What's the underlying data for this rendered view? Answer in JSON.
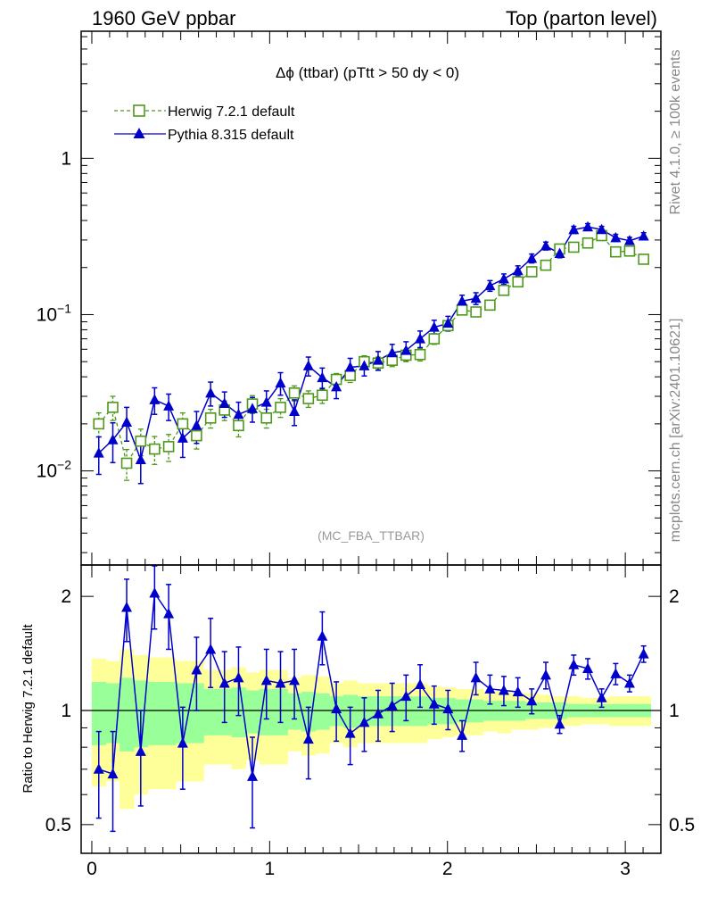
{
  "header": {
    "left": "1960 GeV ppbar",
    "right": "Top (parton level)"
  },
  "side": {
    "rivet": "Rivet 4.1.0, ≥ 100k events",
    "mcplots": "mcplots.cern.ch [arXiv:2401.10621]"
  },
  "colors": {
    "herwig": "#4d9a1a",
    "pythia": "#0000cc",
    "band_inner": "#99ff99",
    "band_outer": "#ffff99"
  },
  "chart_data": [
    {
      "type": "line",
      "panel": "main",
      "title": "Δϕ (ttbar) (pTtt > 50 dy < 0)",
      "watermark": "(MC_FBA_TTBAR)",
      "xlabel": "",
      "ylabel": "",
      "yscale": "log",
      "xlim": [
        -0.06,
        3.2
      ],
      "ylim": [
        0.0025,
        6.5
      ],
      "y_ticks": [
        {
          "value": 0.01,
          "base": "10",
          "exp": "−2"
        },
        {
          "value": 0.1,
          "base": "10",
          "exp": "−1"
        },
        {
          "value": 1,
          "base": "1",
          "exp": ""
        }
      ],
      "legend_position": "top-left",
      "x": [
        0.039,
        0.118,
        0.196,
        0.275,
        0.353,
        0.432,
        0.511,
        0.589,
        0.668,
        0.746,
        0.825,
        0.903,
        0.982,
        1.061,
        1.139,
        1.218,
        1.296,
        1.375,
        1.453,
        1.532,
        1.61,
        1.689,
        1.767,
        1.846,
        1.925,
        2.003,
        2.082,
        2.16,
        2.239,
        2.317,
        2.396,
        2.474,
        2.553,
        2.631,
        2.71,
        2.789,
        2.867,
        2.946,
        3.024,
        3.103
      ],
      "series": [
        {
          "name": "Herwig 7.2.1 default",
          "style": "dashed-open-square",
          "values": [
            0.02,
            0.0255,
            0.0112,
            0.0155,
            0.0138,
            0.0143,
            0.02,
            0.0168,
            0.0218,
            0.0245,
            0.0195,
            0.0268,
            0.0218,
            0.0255,
            0.0315,
            0.029,
            0.0305,
            0.0385,
            0.0408,
            0.05,
            0.049,
            0.051,
            0.055,
            0.0555,
            0.07,
            0.085,
            0.107,
            0.104,
            0.115,
            0.143,
            0.162,
            0.188,
            0.207,
            0.263,
            0.27,
            0.287,
            0.32,
            0.252,
            0.255,
            0.226
          ],
          "errors": [
            0.0035,
            0.0045,
            0.0025,
            0.003,
            0.0028,
            0.0028,
            0.0035,
            0.003,
            0.003,
            0.0035,
            0.003,
            0.0035,
            0.003,
            0.0035,
            0.0035,
            0.0035,
            0.0035,
            0.0035,
            0.004,
            0.0045,
            0.0045,
            0.0045,
            0.005,
            0.005,
            0.0055,
            0.0065,
            0.0075,
            0.007,
            0.007,
            0.009,
            0.009,
            0.01,
            0.01,
            0.012,
            0.012,
            0.012,
            0.013,
            0.011,
            0.011,
            0.01
          ]
        },
        {
          "name": "Pythia 8.315 default",
          "style": "solid-filled-triangle",
          "values": [
            0.013,
            0.0158,
            0.0205,
            0.0118,
            0.0285,
            0.026,
            0.0162,
            0.0195,
            0.0315,
            0.027,
            0.023,
            0.025,
            0.0275,
            0.0365,
            0.024,
            0.047,
            0.0395,
            0.0345,
            0.046,
            0.047,
            0.051,
            0.057,
            0.059,
            0.07,
            0.083,
            0.088,
            0.122,
            0.127,
            0.153,
            0.169,
            0.191,
            0.229,
            0.275,
            0.246,
            0.349,
            0.364,
            0.35,
            0.31,
            0.297,
            0.318
          ],
          "errors": [
            0.0035,
            0.0045,
            0.005,
            0.0035,
            0.0055,
            0.005,
            0.004,
            0.0045,
            0.0055,
            0.005,
            0.0045,
            0.0045,
            0.005,
            0.006,
            0.0045,
            0.0065,
            0.006,
            0.0055,
            0.0065,
            0.0065,
            0.007,
            0.0075,
            0.008,
            0.0085,
            0.009,
            0.0095,
            0.011,
            0.011,
            0.012,
            0.013,
            0.014,
            0.015,
            0.016,
            0.015,
            0.018,
            0.018,
            0.017,
            0.016,
            0.015,
            0.016
          ]
        }
      ]
    },
    {
      "type": "line",
      "panel": "ratio",
      "ylabel": "Ratio to Herwig 7.2.1 default",
      "yscale": "log",
      "xlim": [
        -0.06,
        3.2
      ],
      "ylim": [
        0.42,
        2.42
      ],
      "x_ticks": [
        0,
        1,
        2,
        3
      ],
      "y_ticks": [
        0.5,
        1,
        2
      ],
      "reference_line": 1,
      "x": [
        0.039,
        0.118,
        0.196,
        0.275,
        0.353,
        0.432,
        0.511,
        0.589,
        0.668,
        0.746,
        0.825,
        0.903,
        0.982,
        1.061,
        1.139,
        1.218,
        1.296,
        1.375,
        1.453,
        1.532,
        1.61,
        1.689,
        1.767,
        1.846,
        1.925,
        2.003,
        2.082,
        2.16,
        2.239,
        2.317,
        2.396,
        2.474,
        2.553,
        2.631,
        2.71,
        2.789,
        2.867,
        2.946,
        3.024,
        3.103
      ],
      "band_inner": [
        [
          0.81,
          1.19
        ],
        [
          0.82,
          1.18
        ],
        [
          0.78,
          1.22
        ],
        [
          0.8,
          1.2
        ],
        [
          0.81,
          1.19
        ],
        [
          0.81,
          1.19
        ],
        [
          0.82,
          1.18
        ],
        [
          0.82,
          1.18
        ],
        [
          0.86,
          1.14
        ],
        [
          0.86,
          1.14
        ],
        [
          0.85,
          1.15
        ],
        [
          0.87,
          1.13
        ],
        [
          0.86,
          1.14
        ],
        [
          0.86,
          1.14
        ],
        [
          0.89,
          1.11
        ],
        [
          0.88,
          1.12
        ],
        [
          0.89,
          1.11
        ],
        [
          0.91,
          1.09
        ],
        [
          0.9,
          1.1
        ],
        [
          0.91,
          1.09
        ],
        [
          0.91,
          1.09
        ],
        [
          0.91,
          1.09
        ],
        [
          0.91,
          1.09
        ],
        [
          0.91,
          1.09
        ],
        [
          0.92,
          1.08
        ],
        [
          0.92,
          1.08
        ],
        [
          0.93,
          1.07
        ],
        [
          0.93,
          1.07
        ],
        [
          0.94,
          1.06
        ],
        [
          0.94,
          1.06
        ],
        [
          0.94,
          1.06
        ],
        [
          0.95,
          1.05
        ],
        [
          0.95,
          1.05
        ],
        [
          0.95,
          1.05
        ],
        [
          0.96,
          1.04
        ],
        [
          0.96,
          1.04
        ],
        [
          0.96,
          1.04
        ],
        [
          0.96,
          1.04
        ],
        [
          0.96,
          1.04
        ],
        [
          0.96,
          1.04
        ]
      ],
      "band_outer": [
        [
          0.63,
          1.37
        ],
        [
          0.65,
          1.35
        ],
        [
          0.55,
          1.45
        ],
        [
          0.6,
          1.4
        ],
        [
          0.62,
          1.38
        ],
        [
          0.62,
          1.38
        ],
        [
          0.65,
          1.35
        ],
        [
          0.65,
          1.35
        ],
        [
          0.72,
          1.28
        ],
        [
          0.72,
          1.28
        ],
        [
          0.7,
          1.3
        ],
        [
          0.74,
          1.26
        ],
        [
          0.72,
          1.28
        ],
        [
          0.72,
          1.28
        ],
        [
          0.78,
          1.22
        ],
        [
          0.76,
          1.24
        ],
        [
          0.77,
          1.23
        ],
        [
          0.82,
          1.18
        ],
        [
          0.8,
          1.2
        ],
        [
          0.82,
          1.18
        ],
        [
          0.82,
          1.18
        ],
        [
          0.82,
          1.18
        ],
        [
          0.82,
          1.18
        ],
        [
          0.82,
          1.18
        ],
        [
          0.84,
          1.16
        ],
        [
          0.85,
          1.15
        ],
        [
          0.86,
          1.14
        ],
        [
          0.86,
          1.14
        ],
        [
          0.88,
          1.12
        ],
        [
          0.87,
          1.13
        ],
        [
          0.89,
          1.11
        ],
        [
          0.89,
          1.11
        ],
        [
          0.9,
          1.1
        ],
        [
          0.91,
          1.09
        ],
        [
          0.91,
          1.09
        ],
        [
          0.92,
          1.08
        ],
        [
          0.92,
          1.08
        ],
        [
          0.91,
          1.09
        ],
        [
          0.91,
          1.09
        ],
        [
          0.91,
          1.09
        ]
      ],
      "series": [
        {
          "name": "Pythia 8.315 default",
          "values": [
            0.7,
            0.68,
            1.87,
            0.78,
            2.04,
            1.8,
            0.82,
            1.28,
            1.45,
            1.18,
            1.22,
            0.67,
            1.2,
            1.18,
            1.2,
            0.84,
            1.57,
            1.01,
            0.87,
            0.93,
            0.98,
            1.03,
            1.09,
            1.17,
            1.04,
            1.01,
            0.86,
            1.22,
            1.14,
            1.13,
            1.12,
            1.06,
            1.24,
            0.92,
            1.32,
            1.29,
            1.08,
            1.25,
            1.18,
            1.41
          ],
          "errors": [
            0.18,
            0.2,
            0.35,
            0.22,
            0.4,
            0.35,
            0.2,
            0.28,
            0.3,
            0.25,
            0.25,
            0.18,
            0.25,
            0.25,
            0.25,
            0.18,
            0.25,
            0.18,
            0.15,
            0.15,
            0.15,
            0.15,
            0.15,
            0.15,
            0.12,
            0.12,
            0.08,
            0.12,
            0.1,
            0.1,
            0.1,
            0.08,
            0.1,
            0.05,
            0.08,
            0.08,
            0.06,
            0.08,
            0.06,
            0.07
          ]
        }
      ]
    }
  ]
}
